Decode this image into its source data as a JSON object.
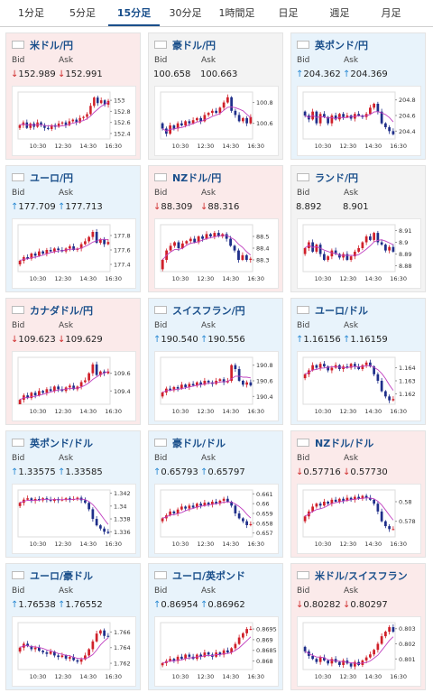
{
  "tabs": [
    {
      "label": "1分足",
      "active": false
    },
    {
      "label": "5分足",
      "active": false
    },
    {
      "label": "15分足",
      "active": true
    },
    {
      "label": "30分足",
      "active": false
    },
    {
      "label": "1時間足",
      "active": false
    },
    {
      "label": "日足",
      "active": false
    },
    {
      "label": "週足",
      "active": false
    },
    {
      "label": "月足",
      "active": false
    }
  ],
  "bid_label": "Bid",
  "ask_label": "Ask",
  "colors": {
    "up": "#2b8ad3",
    "down": "#d03030",
    "candle_up": "#d0202a",
    "candle_down": "#1f2f8a",
    "ma_line": "#c040c0",
    "pink_bg": "#fbeaea",
    "blue_bg": "#e8f3fb"
  },
  "pairs": [
    {
      "name": "米ドル/円",
      "flag": "us-flag",
      "bid": "152.989",
      "ask": "152.991",
      "direction": "down",
      "bg": "down",
      "chart_data": {
        "type": "candlestick",
        "x_ticks": [
          "10:30",
          "12:30",
          "14:30",
          "16:30"
        ],
        "y_ticks": [
          153,
          152.8,
          152.6,
          152.4
        ],
        "ylim": [
          152.3,
          153.15
        ],
        "close": [
          152.55,
          152.6,
          152.5,
          152.58,
          152.52,
          152.6,
          152.55,
          152.5,
          152.48,
          152.55,
          152.52,
          152.58,
          152.6,
          152.55,
          152.62,
          152.65,
          152.6,
          152.68,
          152.7,
          152.75,
          152.9,
          153.05,
          152.95,
          153.0,
          152.92,
          152.99
        ]
      }
    },
    {
      "name": "豪ドル/円",
      "flag": "au-flag",
      "bid": "100.658",
      "ask": "100.663",
      "direction": "none",
      "bg": "flat",
      "chart_data": {
        "type": "candlestick",
        "x_ticks": [
          "10:30",
          "12:30",
          "14:30",
          "16:30"
        ],
        "y_ticks": [
          100.8,
          100.6
        ],
        "ylim": [
          100.45,
          100.9
        ],
        "close": [
          100.55,
          100.5,
          100.58,
          100.55,
          100.6,
          100.58,
          100.62,
          100.6,
          100.63,
          100.65,
          100.62,
          100.68,
          100.7,
          100.72,
          100.7,
          100.75,
          100.8,
          100.85,
          100.72,
          100.68,
          100.62,
          100.65,
          100.6,
          100.66
        ]
      }
    },
    {
      "name": "英ポンド/円",
      "flag": "uk-flag",
      "bid": "204.362",
      "ask": "204.369",
      "direction": "up",
      "bg": "up",
      "chart_data": {
        "type": "candlestick",
        "x_ticks": [
          "10:30",
          "12:30",
          "14:30",
          "16:30"
        ],
        "y_ticks": [
          204.8,
          204.6,
          204.4
        ],
        "ylim": [
          204.3,
          204.9
        ],
        "close": [
          204.6,
          204.55,
          204.65,
          204.5,
          204.62,
          204.58,
          204.5,
          204.6,
          204.55,
          204.62,
          204.58,
          204.6,
          204.56,
          204.62,
          204.6,
          204.58,
          204.62,
          204.7,
          204.75,
          204.65,
          204.5,
          204.45,
          204.4,
          204.36
        ]
      }
    },
    {
      "name": "ユーロ/円",
      "flag": "eu-flag",
      "bid": "177.709",
      "ask": "177.713",
      "direction": "up",
      "bg": "up",
      "chart_data": {
        "type": "candlestick",
        "x_ticks": [
          "10:30",
          "12:30",
          "14:30",
          "16:30"
        ],
        "y_ticks": [
          177.8,
          177.6,
          177.4
        ],
        "ylim": [
          177.3,
          177.95
        ],
        "close": [
          177.45,
          177.5,
          177.48,
          177.55,
          177.52,
          177.58,
          177.55,
          177.6,
          177.58,
          177.62,
          177.6,
          177.58,
          177.62,
          177.65,
          177.6,
          177.62,
          177.68,
          177.72,
          177.78,
          177.85,
          177.7,
          177.75,
          177.68,
          177.71
        ]
      }
    },
    {
      "name": "NZドル/円",
      "flag": "nz-flag",
      "bid": "88.309",
      "ask": "88.316",
      "direction": "down",
      "bg": "down",
      "chart_data": {
        "type": "candlestick",
        "x_ticks": [
          "10:30",
          "12:30",
          "14:30",
          "16:30"
        ],
        "y_ticks": [
          88.5,
          88.4,
          88.3
        ],
        "ylim": [
          88.2,
          88.6
        ],
        "close": [
          88.3,
          88.38,
          88.42,
          88.45,
          88.4,
          88.44,
          88.46,
          88.48,
          88.45,
          88.5,
          88.48,
          88.52,
          88.5,
          88.53,
          88.5,
          88.52,
          88.48,
          88.42,
          88.38,
          88.3,
          88.34,
          88.3,
          88.31
        ]
      }
    },
    {
      "name": "ランド/円",
      "flag": "za-flag",
      "bid": "8.892",
      "ask": "8.901",
      "direction": "none",
      "bg": "flat",
      "chart_data": {
        "type": "candlestick",
        "x_ticks": [
          "10:30",
          "12:30",
          "14:30",
          "16:30"
        ],
        "y_ticks": [
          8.91,
          8.9,
          8.89,
          8.88
        ],
        "ylim": [
          8.875,
          8.915
        ],
        "close": [
          8.895,
          8.9,
          8.892,
          8.898,
          8.89,
          8.885,
          8.888,
          8.893,
          8.89,
          8.887,
          8.89,
          8.885,
          8.888,
          8.892,
          8.895,
          8.9,
          8.905,
          8.902,
          8.908,
          8.9,
          8.898,
          8.893,
          8.896,
          8.892
        ]
      }
    },
    {
      "name": "カナダドル/円",
      "flag": "ca-flag",
      "bid": "109.623",
      "ask": "109.629",
      "direction": "down",
      "bg": "down",
      "chart_data": {
        "type": "candlestick",
        "x_ticks": [
          "10:30",
          "12:30",
          "14:30",
          "16:30"
        ],
        "y_ticks": [
          109.6,
          109.4
        ],
        "ylim": [
          109.25,
          109.78
        ],
        "close": [
          109.3,
          109.35,
          109.32,
          109.38,
          109.35,
          109.4,
          109.38,
          109.42,
          109.4,
          109.45,
          109.42,
          109.4,
          109.44,
          109.46,
          109.42,
          109.45,
          109.5,
          109.52,
          109.6,
          109.7,
          109.58,
          109.62,
          109.6,
          109.62
        ]
      }
    },
    {
      "name": "スイスフラン/円",
      "flag": "ch-flag",
      "bid": "190.540",
      "ask": "190.556",
      "direction": "up",
      "bg": "up",
      "chart_data": {
        "type": "candlestick",
        "x_ticks": [
          "10:30",
          "12:30",
          "14:30",
          "16:30"
        ],
        "y_ticks": [
          190.8,
          190.6,
          190.4
        ],
        "ylim": [
          190.3,
          190.9
        ],
        "close": [
          190.45,
          190.5,
          190.48,
          190.52,
          190.5,
          190.55,
          190.52,
          190.56,
          190.54,
          190.58,
          190.55,
          190.6,
          190.58,
          190.56,
          190.6,
          190.62,
          190.58,
          190.6,
          190.8,
          190.75,
          190.6,
          190.55,
          190.58,
          190.54
        ]
      }
    },
    {
      "name": "ユーロ/ドル",
      "flag": "eu-us-flag",
      "bid": "1.16156",
      "ask": "1.16159",
      "direction": "up",
      "bg": "up",
      "chart_data": {
        "type": "candlestick",
        "x_ticks": [
          "10:30",
          "12:30",
          "14:30",
          "16:30"
        ],
        "y_ticks": [
          1.164,
          1.163,
          1.162
        ],
        "ylim": [
          1.1612,
          1.1648
        ],
        "close": [
          1.1635,
          1.1638,
          1.1642,
          1.164,
          1.1643,
          1.1641,
          1.1638,
          1.164,
          1.1642,
          1.1639,
          1.1641,
          1.164,
          1.1643,
          1.1641,
          1.1639,
          1.1642,
          1.1644,
          1.1641,
          1.1635,
          1.163,
          1.1622,
          1.1618,
          1.1615,
          1.1616
        ]
      }
    },
    {
      "name": "英ポンド/ドル",
      "flag": "uk-us-flag",
      "bid": "1.33575",
      "ask": "1.33585",
      "direction": "up",
      "bg": "up",
      "chart_data": {
        "type": "candlestick",
        "x_ticks": [
          "10:30",
          "12:30",
          "14:30",
          "16:30"
        ],
        "y_ticks": [
          1.342,
          1.34,
          1.338,
          1.336
        ],
        "ylim": [
          1.3352,
          1.3425
        ],
        "close": [
          1.3405,
          1.341,
          1.3412,
          1.3408,
          1.3411,
          1.3409,
          1.3412,
          1.341,
          1.3408,
          1.3411,
          1.3409,
          1.341,
          1.3412,
          1.341,
          1.3411,
          1.3413,
          1.3409,
          1.3405,
          1.3395,
          1.338,
          1.337,
          1.3365,
          1.336,
          1.3358
        ]
      }
    },
    {
      "name": "豪ドル/ドル",
      "flag": "au-us-flag",
      "bid": "0.65793",
      "ask": "0.65797",
      "direction": "up",
      "bg": "up",
      "chart_data": {
        "type": "candlestick",
        "x_ticks": [
          "10:30",
          "12:30",
          "14:30",
          "16:30"
        ],
        "y_ticks": [
          0.661,
          0.66,
          0.659,
          0.658,
          0.657
        ],
        "ylim": [
          0.6566,
          0.6614
        ],
        "close": [
          0.6585,
          0.6588,
          0.6592,
          0.659,
          0.6594,
          0.6597,
          0.6595,
          0.6598,
          0.6596,
          0.66,
          0.6598,
          0.6601,
          0.6599,
          0.6602,
          0.66,
          0.6603,
          0.6605,
          0.6602,
          0.6598,
          0.659,
          0.6585,
          0.6582,
          0.6578,
          0.6579
        ]
      }
    },
    {
      "name": "NZドル/ドル",
      "flag": "nz-us-flag",
      "bid": "0.57716",
      "ask": "0.57730",
      "direction": "down",
      "bg": "down",
      "chart_data": {
        "type": "candlestick",
        "x_ticks": [
          "10:30",
          "12:30",
          "14:30",
          "16:30"
        ],
        "y_ticks": [
          0.58,
          0.578
        ],
        "ylim": [
          0.5764,
          0.5812
        ],
        "close": [
          0.5785,
          0.579,
          0.5795,
          0.5798,
          0.5796,
          0.58,
          0.5798,
          0.5802,
          0.58,
          0.5803,
          0.5801,
          0.5804,
          0.5802,
          0.5805,
          0.5803,
          0.5806,
          0.5804,
          0.5802,
          0.5798,
          0.579,
          0.578,
          0.5775,
          0.5772,
          0.5772
        ]
      }
    },
    {
      "name": "ユーロ/豪ドル",
      "flag": "eu-au-flag",
      "bid": "1.76538",
      "ask": "1.76552",
      "direction": "up",
      "bg": "up",
      "chart_data": {
        "type": "candlestick",
        "x_ticks": [
          "10:30",
          "12:30",
          "14:30",
          "16:30"
        ],
        "y_ticks": [
          1.766,
          1.764,
          1.762
        ],
        "ylim": [
          1.7612,
          1.7672
        ],
        "close": [
          1.764,
          1.7645,
          1.7642,
          1.7638,
          1.764,
          1.7636,
          1.7634,
          1.7632,
          1.7635,
          1.763,
          1.7628,
          1.763,
          1.7626,
          1.7628,
          1.7624,
          1.7622,
          1.7625,
          1.763,
          1.7638,
          1.7648,
          1.7658,
          1.7662,
          1.7655,
          1.7654
        ]
      }
    },
    {
      "name": "ユーロ/英ポンド",
      "flag": "eu-uk-flag",
      "bid": "0.86954",
      "ask": "0.86962",
      "direction": "up",
      "bg": "up",
      "chart_data": {
        "type": "candlestick",
        "x_ticks": [
          "10:30",
          "12:30",
          "14:30",
          "16:30"
        ],
        "y_ticks": [
          0.8695,
          0.869,
          0.8685,
          0.868
        ],
        "ylim": [
          0.8676,
          0.8698
        ],
        "close": [
          0.8679,
          0.868,
          0.8681,
          0.868,
          0.8682,
          0.8681,
          0.8683,
          0.8682,
          0.8681,
          0.8683,
          0.8682,
          0.8684,
          0.8683,
          0.8682,
          0.8684,
          0.8683,
          0.8685,
          0.8684,
          0.8686,
          0.8688,
          0.8691,
          0.8693,
          0.8695,
          0.8695
        ]
      }
    },
    {
      "name": "米ドル/スイスフラン",
      "flag": "us-ch-flag",
      "bid": "0.80282",
      "ask": "0.80297",
      "direction": "down",
      "bg": "down",
      "chart_data": {
        "type": "candlestick",
        "x_ticks": [
          "10:30",
          "12:30",
          "14:30",
          "16:30"
        ],
        "y_ticks": [
          0.803,
          0.802,
          0.801
        ],
        "ylim": [
          0.8003,
          0.8034
        ],
        "close": [
          0.8015,
          0.8012,
          0.801,
          0.8008,
          0.8011,
          0.8009,
          0.8007,
          0.801,
          0.8008,
          0.8006,
          0.8009,
          0.8007,
          0.8005,
          0.8008,
          0.8006,
          0.8009,
          0.8011,
          0.8013,
          0.8016,
          0.802,
          0.8025,
          0.8028,
          0.8031,
          0.8028
        ]
      }
    }
  ]
}
